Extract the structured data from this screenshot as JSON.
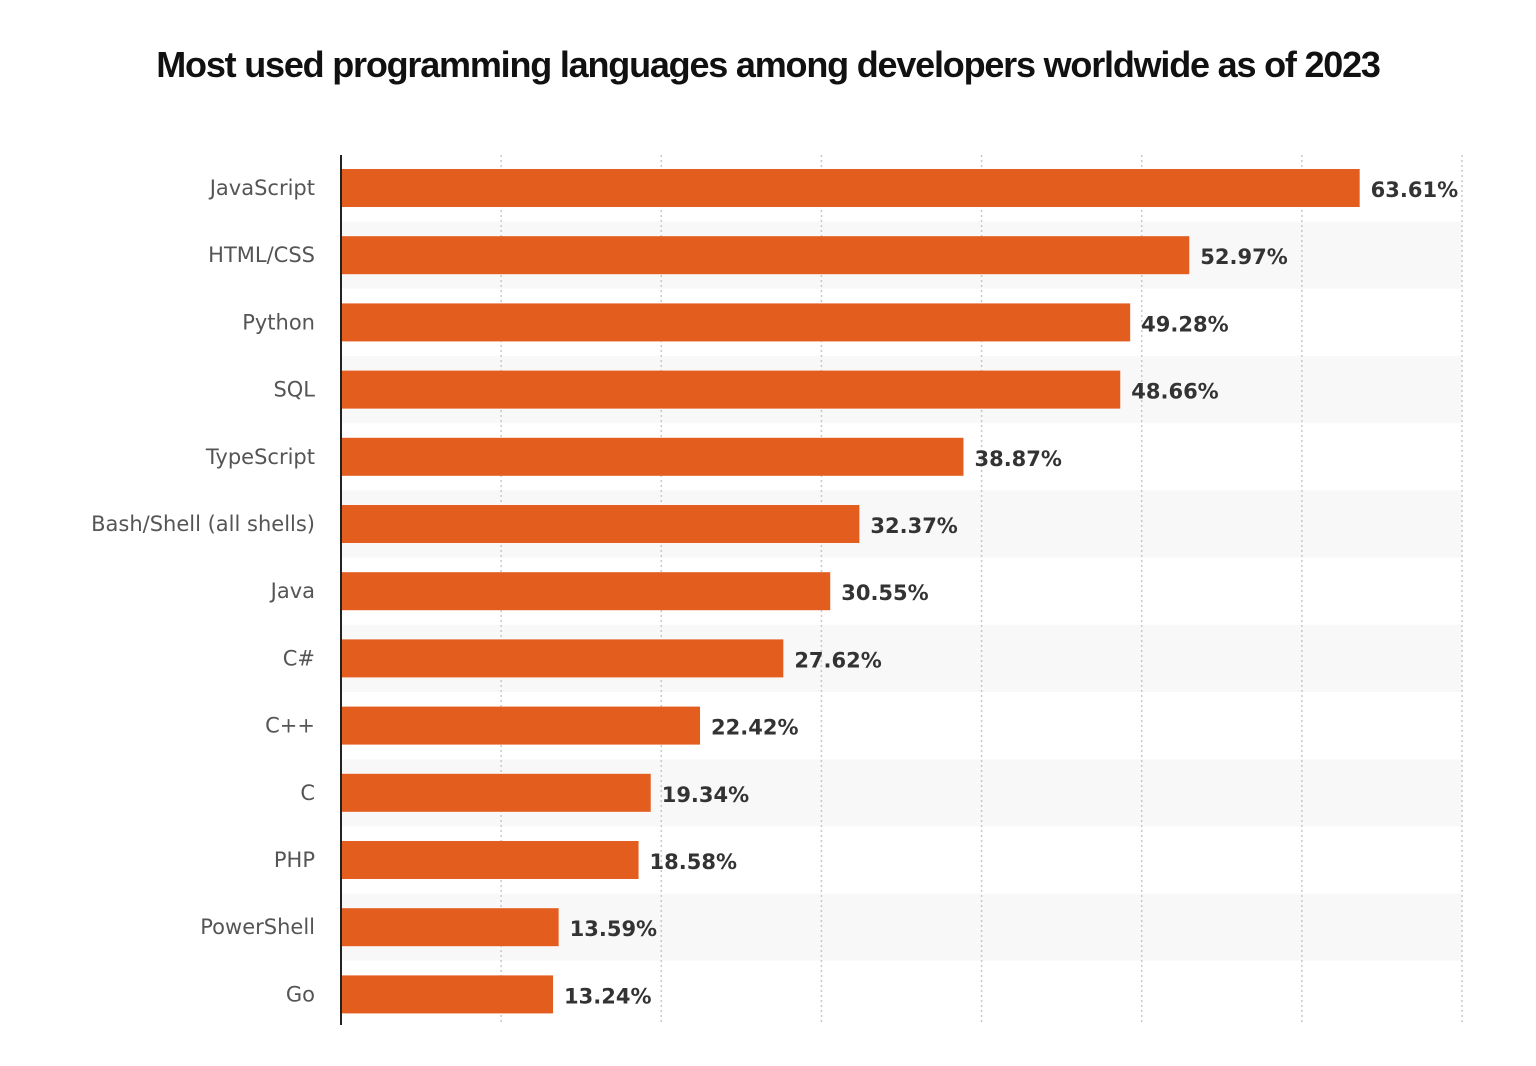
{
  "chart_data": {
    "type": "bar",
    "orientation": "horizontal",
    "title": "Most used programming languages among developers worldwide as of 2023",
    "categories": [
      "JavaScript",
      "HTML/CSS",
      "Python",
      "SQL",
      "TypeScript",
      "Bash/Shell (all shells)",
      "Java",
      "C#",
      "C++",
      "C",
      "PHP",
      "PowerShell",
      "Go"
    ],
    "values": [
      63.61,
      52.97,
      49.28,
      48.66,
      38.87,
      32.37,
      30.55,
      27.62,
      22.42,
      19.34,
      18.58,
      13.59,
      13.24
    ],
    "value_labels": [
      "63.61%",
      "52.97%",
      "49.28%",
      "48.66%",
      "38.87%",
      "32.37%",
      "30.55%",
      "27.62%",
      "22.42%",
      "19.34%",
      "18.58%",
      "13.59%",
      "13.24%"
    ],
    "xlim": [
      0,
      70
    ],
    "grid": true,
    "grid_step": 10,
    "xlabel": "",
    "ylabel": "",
    "legend": "none",
    "colors": {
      "bar": "#e35d1f",
      "band": "#f8f8f8",
      "label": "#555555",
      "value": "#333333"
    }
  }
}
